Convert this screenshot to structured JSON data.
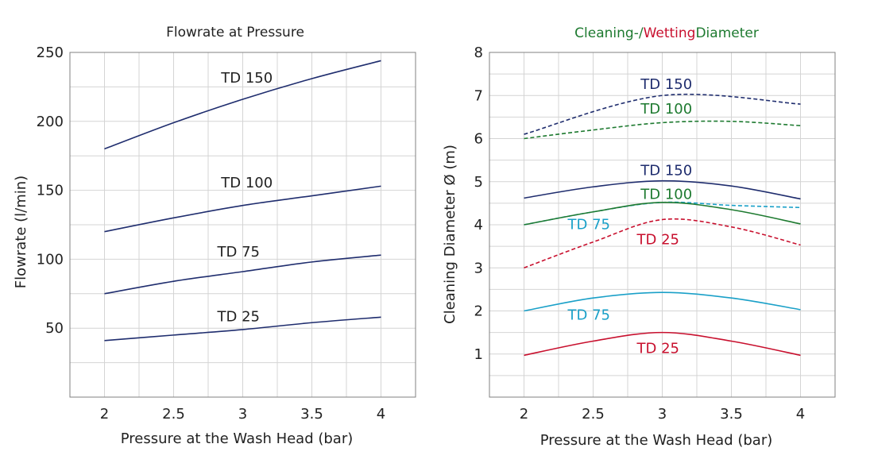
{
  "chart_data": [
    {
      "type": "line",
      "title": "Flowrate at Pressure",
      "xlabel": "Pressure at the Wash Head (bar)",
      "ylabel": "Flowrate (l/min)",
      "xlim": [
        1.75,
        4.25
      ],
      "ylim": [
        0,
        250
      ],
      "xticks": [
        "2",
        "2.5",
        "3",
        "3.5",
        "4"
      ],
      "yticks": [
        "50",
        "100",
        "150",
        "200",
        "250"
      ],
      "grid": true,
      "series": [
        {
          "name": "TD 150",
          "color": "#1f2d6e",
          "style": "solid",
          "x": [
            2,
            2.5,
            3,
            3.5,
            4
          ],
          "y": [
            180,
            199,
            216,
            231,
            244
          ]
        },
        {
          "name": "TD 100",
          "color": "#1f2d6e",
          "style": "solid",
          "x": [
            2,
            2.5,
            3,
            3.5,
            4
          ],
          "y": [
            120,
            130,
            139,
            146,
            153
          ]
        },
        {
          "name": "TD 75",
          "color": "#1f2d6e",
          "style": "solid",
          "x": [
            2,
            2.5,
            3,
            3.5,
            4
          ],
          "y": [
            75,
            84,
            91,
            98,
            103
          ]
        },
        {
          "name": "TD 25",
          "color": "#1f2d6e",
          "style": "solid",
          "x": [
            2,
            2.5,
            3,
            3.5,
            4
          ],
          "y": [
            41,
            45,
            49,
            54,
            58
          ]
        }
      ],
      "line_labels": [
        {
          "text": "TD 150",
          "color": "#222222",
          "x": 3.03,
          "y": 228
        },
        {
          "text": "TD 100",
          "color": "#222222",
          "x": 3.03,
          "y": 152
        },
        {
          "text": "TD 75",
          "color": "#222222",
          "x": 2.97,
          "y": 102
        },
        {
          "text": "TD 25",
          "color": "#222222",
          "x": 2.97,
          "y": 55
        }
      ]
    },
    {
      "type": "line",
      "title_parts": [
        {
          "text": "Cleaning-/",
          "color": "#1e7a30"
        },
        {
          "text": "Wetting",
          "color": "#c8102e"
        },
        {
          "text": "Diameter",
          "color": "#1e7a30"
        }
      ],
      "xlabel": "Pressure at the Wash Head (bar)",
      "ylabel": "Cleaning Diameter Ø (m)",
      "xlim": [
        1.75,
        4.25
      ],
      "ylim": [
        0,
        8
      ],
      "xticks": [
        "2",
        "2.5",
        "3",
        "3.5",
        "4"
      ],
      "yticks": [
        "1",
        "2",
        "3",
        "4",
        "5",
        "6",
        "7",
        "8"
      ],
      "grid": true,
      "series": [
        {
          "name": "TD 150",
          "color": "#1f2d6e",
          "style": "dashed",
          "x": [
            2,
            3,
            4
          ],
          "y": [
            6.1,
            7.0,
            6.8
          ]
        },
        {
          "name": "TD 100",
          "color": "#1e7a30",
          "style": "dashed",
          "x": [
            2,
            2.5,
            3,
            3.5,
            4
          ],
          "y": [
            6.0,
            6.2,
            6.37,
            6.4,
            6.3
          ]
        },
        {
          "name": "TD 150",
          "color": "#1f2d6e",
          "style": "solid",
          "x": [
            2,
            2.5,
            3,
            3.5,
            4
          ],
          "y": [
            4.62,
            4.88,
            5.02,
            4.9,
            4.6
          ]
        },
        {
          "name": "TD 75",
          "color": "#1aa0c8",
          "style": "dashed",
          "x": [
            2,
            2.5,
            3,
            3.5,
            4
          ],
          "y": [
            4.0,
            4.3,
            4.52,
            4.45,
            4.4
          ]
        },
        {
          "name": "TD 100",
          "color": "#1e7a30",
          "style": "solid",
          "x": [
            2,
            2.5,
            3,
            3.5,
            4
          ],
          "y": [
            4.0,
            4.3,
            4.52,
            4.35,
            4.02
          ]
        },
        {
          "name": "TD 25",
          "color": "#c8102e",
          "style": "dashed",
          "x": [
            2,
            2.5,
            3,
            3.5,
            4
          ],
          "y": [
            3.0,
            3.6,
            4.12,
            3.95,
            3.53
          ]
        },
        {
          "name": "TD 75",
          "color": "#1aa0c8",
          "style": "solid",
          "x": [
            2,
            2.5,
            3,
            3.5,
            4
          ],
          "y": [
            2.0,
            2.3,
            2.43,
            2.3,
            2.03
          ]
        },
        {
          "name": "TD 25",
          "color": "#c8102e",
          "style": "solid",
          "x": [
            2,
            2.5,
            3,
            3.5,
            4
          ],
          "y": [
            0.97,
            1.3,
            1.5,
            1.3,
            0.97
          ]
        }
      ],
      "line_labels": [
        {
          "text": "TD 150",
          "color": "#1f2d6e",
          "x": 3.03,
          "y": 7.15
        },
        {
          "text": "TD 100",
          "color": "#1e7a30",
          "x": 3.03,
          "y": 6.58
        },
        {
          "text": "TD 150",
          "color": "#1f2d6e",
          "x": 3.03,
          "y": 5.15
        },
        {
          "text": "TD 100",
          "color": "#1e7a30",
          "x": 3.03,
          "y": 4.6
        },
        {
          "text": "TD 75",
          "color": "#1aa0c8",
          "x": 2.47,
          "y": 3.9
        },
        {
          "text": "TD 25",
          "color": "#c8102e",
          "x": 2.97,
          "y": 3.55
        },
        {
          "text": "TD 75",
          "color": "#1aa0c8",
          "x": 2.47,
          "y": 1.8
        },
        {
          "text": "TD 25",
          "color": "#c8102e",
          "x": 2.97,
          "y": 1.02
        }
      ]
    }
  ]
}
